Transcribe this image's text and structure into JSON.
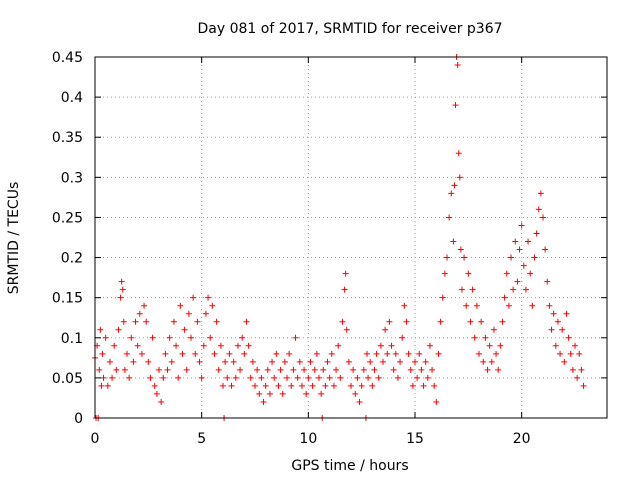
{
  "chart_data": {
    "type": "scatter",
    "title": "Day 081 of 2017, SRMTID for receiver p367",
    "xlabel": "GPS time / hours",
    "ylabel": "SRMTID / TECUs",
    "xlim": [
      0,
      24
    ],
    "ylim": [
      0,
      0.45
    ],
    "xticks": [
      0,
      5,
      10,
      15,
      20
    ],
    "xtick_labels": [
      "0",
      "5",
      "10",
      "15",
      "20"
    ],
    "yticks": [
      0,
      0.05,
      0.1,
      0.15,
      0.2,
      0.25,
      0.3,
      0.35,
      0.4,
      0.45
    ],
    "ytick_labels": [
      "0",
      "0.05",
      "0.1",
      "0.15",
      "0.2",
      "0.25",
      "0.3",
      "0.35",
      "0.4",
      "0.45"
    ],
    "grid": true,
    "marker": "+",
    "color": "#ff0000",
    "series": [
      {
        "name": "SRMTID",
        "points": [
          [
            0.0,
            0.075
          ],
          [
            0.05,
            0.0
          ],
          [
            0.1,
            0.09
          ],
          [
            0.15,
            0.0
          ],
          [
            0.2,
            0.06
          ],
          [
            0.25,
            0.11
          ],
          [
            0.3,
            0.04
          ],
          [
            0.35,
            0.08
          ],
          [
            0.4,
            0.05
          ],
          [
            0.5,
            0.1
          ],
          [
            0.6,
            0.04
          ],
          [
            0.7,
            0.07
          ],
          [
            0.8,
            0.05
          ],
          [
            0.9,
            0.09
          ],
          [
            1.0,
            0.06
          ],
          [
            1.1,
            0.11
          ],
          [
            1.2,
            0.15
          ],
          [
            1.25,
            0.17
          ],
          [
            1.3,
            0.16
          ],
          [
            1.35,
            0.12
          ],
          [
            1.4,
            0.06
          ],
          [
            1.5,
            0.08
          ],
          [
            1.6,
            0.05
          ],
          [
            1.7,
            0.1
          ],
          [
            1.8,
            0.07
          ],
          [
            1.9,
            0.12
          ],
          [
            2.0,
            0.09
          ],
          [
            2.1,
            0.13
          ],
          [
            2.2,
            0.08
          ],
          [
            2.3,
            0.14
          ],
          [
            2.4,
            0.12
          ],
          [
            2.5,
            0.07
          ],
          [
            2.6,
            0.05
          ],
          [
            2.7,
            0.1
          ],
          [
            2.8,
            0.04
          ],
          [
            2.9,
            0.03
          ],
          [
            3.0,
            0.06
          ],
          [
            3.1,
            0.02
          ],
          [
            3.2,
            0.05
          ],
          [
            3.3,
            0.08
          ],
          [
            3.4,
            0.06
          ],
          [
            3.5,
            0.1
          ],
          [
            3.6,
            0.07
          ],
          [
            3.7,
            0.12
          ],
          [
            3.8,
            0.09
          ],
          [
            3.9,
            0.05
          ],
          [
            4.0,
            0.14
          ],
          [
            4.1,
            0.08
          ],
          [
            4.2,
            0.11
          ],
          [
            4.3,
            0.06
          ],
          [
            4.4,
            0.13
          ],
          [
            4.5,
            0.1
          ],
          [
            4.6,
            0.15
          ],
          [
            4.7,
            0.08
          ],
          [
            4.8,
            0.12
          ],
          [
            4.9,
            0.07
          ],
          [
            5.0,
            0.05
          ],
          [
            5.1,
            0.09
          ],
          [
            5.2,
            0.13
          ],
          [
            5.3,
            0.15
          ],
          [
            5.4,
            0.1
          ],
          [
            5.5,
            0.14
          ],
          [
            5.6,
            0.08
          ],
          [
            5.7,
            0.12
          ],
          [
            5.8,
            0.06
          ],
          [
            5.9,
            0.09
          ],
          [
            6.0,
            0.04
          ],
          [
            6.05,
            0.0
          ],
          [
            6.1,
            0.07
          ],
          [
            6.2,
            0.05
          ],
          [
            6.3,
            0.08
          ],
          [
            6.4,
            0.04
          ],
          [
            6.5,
            0.07
          ],
          [
            6.6,
            0.05
          ],
          [
            6.7,
            0.09
          ],
          [
            6.8,
            0.06
          ],
          [
            6.9,
            0.1
          ],
          [
            7.0,
            0.08
          ],
          [
            7.1,
            0.12
          ],
          [
            7.2,
            0.09
          ],
          [
            7.3,
            0.05
          ],
          [
            7.4,
            0.07
          ],
          [
            7.5,
            0.04
          ],
          [
            7.6,
            0.06
          ],
          [
            7.7,
            0.03
          ],
          [
            7.8,
            0.05
          ],
          [
            7.9,
            0.02
          ],
          [
            8.0,
            0.04
          ],
          [
            8.1,
            0.06
          ],
          [
            8.2,
            0.03
          ],
          [
            8.3,
            0.07
          ],
          [
            8.4,
            0.05
          ],
          [
            8.5,
            0.08
          ],
          [
            8.6,
            0.04
          ],
          [
            8.7,
            0.06
          ],
          [
            8.8,
            0.03
          ],
          [
            8.9,
            0.07
          ],
          [
            9.0,
            0.05
          ],
          [
            9.1,
            0.08
          ],
          [
            9.2,
            0.04
          ],
          [
            9.3,
            0.06
          ],
          [
            9.4,
            0.1
          ],
          [
            9.5,
            0.05
          ],
          [
            9.6,
            0.07
          ],
          [
            9.7,
            0.04
          ],
          [
            9.8,
            0.06
          ],
          [
            9.9,
            0.03
          ],
          [
            10.0,
            0.05
          ],
          [
            10.1,
            0.07
          ],
          [
            10.2,
            0.04
          ],
          [
            10.3,
            0.06
          ],
          [
            10.4,
            0.08
          ],
          [
            10.5,
            0.05
          ],
          [
            10.6,
            0.03
          ],
          [
            10.65,
            0.0
          ],
          [
            10.7,
            0.06
          ],
          [
            10.8,
            0.04
          ],
          [
            10.9,
            0.07
          ],
          [
            11.0,
            0.05
          ],
          [
            11.1,
            0.08
          ],
          [
            11.2,
            0.04
          ],
          [
            11.3,
            0.06
          ],
          [
            11.4,
            0.09
          ],
          [
            11.5,
            0.05
          ],
          [
            11.6,
            0.12
          ],
          [
            11.7,
            0.16
          ],
          [
            11.75,
            0.18
          ],
          [
            11.8,
            0.11
          ],
          [
            11.9,
            0.07
          ],
          [
            12.0,
            0.04
          ],
          [
            12.1,
            0.06
          ],
          [
            12.2,
            0.03
          ],
          [
            12.3,
            0.05
          ],
          [
            12.4,
            0.02
          ],
          [
            12.5,
            0.04
          ],
          [
            12.6,
            0.06
          ],
          [
            12.7,
            0.0
          ],
          [
            12.75,
            0.08
          ],
          [
            12.8,
            0.05
          ],
          [
            12.9,
            0.07
          ],
          [
            13.0,
            0.04
          ],
          [
            13.1,
            0.06
          ],
          [
            13.2,
            0.08
          ],
          [
            13.3,
            0.05
          ],
          [
            13.4,
            0.09
          ],
          [
            13.5,
            0.07
          ],
          [
            13.6,
            0.11
          ],
          [
            13.7,
            0.08
          ],
          [
            13.8,
            0.12
          ],
          [
            13.9,
            0.09
          ],
          [
            14.0,
            0.06
          ],
          [
            14.1,
            0.08
          ],
          [
            14.2,
            0.05
          ],
          [
            14.3,
            0.07
          ],
          [
            14.4,
            0.1
          ],
          [
            14.5,
            0.14
          ],
          [
            14.6,
            0.12
          ],
          [
            14.7,
            0.08
          ],
          [
            14.8,
            0.06
          ],
          [
            14.9,
            0.04
          ],
          [
            15.0,
            0.07
          ],
          [
            15.1,
            0.05
          ],
          [
            15.2,
            0.08
          ],
          [
            15.3,
            0.06
          ],
          [
            15.4,
            0.04
          ],
          [
            15.5,
            0.07
          ],
          [
            15.6,
            0.05
          ],
          [
            15.7,
            0.09
          ],
          [
            15.8,
            0.06
          ],
          [
            15.9,
            0.04
          ],
          [
            16.0,
            0.02
          ],
          [
            16.1,
            0.08
          ],
          [
            16.2,
            0.12
          ],
          [
            16.3,
            0.15
          ],
          [
            16.4,
            0.18
          ],
          [
            16.5,
            0.2
          ],
          [
            16.6,
            0.25
          ],
          [
            16.7,
            0.28
          ],
          [
            16.8,
            0.22
          ],
          [
            16.85,
            0.29
          ],
          [
            16.9,
            0.39
          ],
          [
            16.95,
            0.45
          ],
          [
            17.0,
            0.44
          ],
          [
            17.05,
            0.33
          ],
          [
            17.1,
            0.3
          ],
          [
            17.15,
            0.21
          ],
          [
            17.2,
            0.16
          ],
          [
            17.3,
            0.2
          ],
          [
            17.4,
            0.14
          ],
          [
            17.5,
            0.18
          ],
          [
            17.6,
            0.12
          ],
          [
            17.7,
            0.16
          ],
          [
            17.8,
            0.1
          ],
          [
            17.9,
            0.14
          ],
          [
            18.0,
            0.08
          ],
          [
            18.1,
            0.12
          ],
          [
            18.2,
            0.07
          ],
          [
            18.3,
            0.1
          ],
          [
            18.4,
            0.06
          ],
          [
            18.5,
            0.09
          ],
          [
            18.6,
            0.07
          ],
          [
            18.7,
            0.11
          ],
          [
            18.8,
            0.08
          ],
          [
            18.9,
            0.06
          ],
          [
            19.0,
            0.09
          ],
          [
            19.1,
            0.12
          ],
          [
            19.2,
            0.15
          ],
          [
            19.3,
            0.18
          ],
          [
            19.4,
            0.14
          ],
          [
            19.5,
            0.2
          ],
          [
            19.6,
            0.16
          ],
          [
            19.7,
            0.22
          ],
          [
            19.8,
            0.17
          ],
          [
            19.9,
            0.21
          ],
          [
            20.0,
            0.24
          ],
          [
            20.1,
            0.19
          ],
          [
            20.2,
            0.16
          ],
          [
            20.3,
            0.22
          ],
          [
            20.4,
            0.18
          ],
          [
            20.5,
            0.14
          ],
          [
            20.6,
            0.2
          ],
          [
            20.7,
            0.23
          ],
          [
            20.8,
            0.26
          ],
          [
            20.9,
            0.28
          ],
          [
            21.0,
            0.25
          ],
          [
            21.1,
            0.21
          ],
          [
            21.2,
            0.17
          ],
          [
            21.3,
            0.14
          ],
          [
            21.4,
            0.11
          ],
          [
            21.5,
            0.13
          ],
          [
            21.6,
            0.09
          ],
          [
            21.7,
            0.12
          ],
          [
            21.8,
            0.08
          ],
          [
            21.9,
            0.11
          ],
          [
            22.0,
            0.07
          ],
          [
            22.1,
            0.13
          ],
          [
            22.2,
            0.1
          ],
          [
            22.3,
            0.08
          ],
          [
            22.4,
            0.06
          ],
          [
            22.5,
            0.09
          ],
          [
            22.6,
            0.05
          ],
          [
            22.7,
            0.08
          ],
          [
            22.8,
            0.06
          ],
          [
            22.9,
            0.04
          ]
        ]
      }
    ]
  }
}
